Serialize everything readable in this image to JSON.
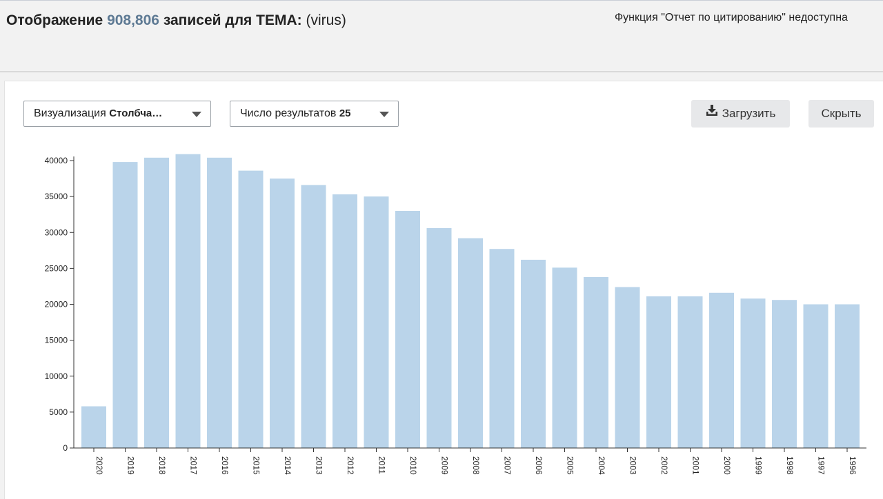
{
  "header": {
    "title_prefix": "Отображение",
    "record_count": "908,806",
    "title_mid": "записей для",
    "field": "ТЕМА:",
    "query": "(virus)",
    "notice": "Функция \"Отчет по цитированию\" недоступна"
  },
  "controls": {
    "visualization_label": "Визуализация",
    "visualization_value": "Столбча…",
    "results_label": "Число результатов",
    "results_value": "25",
    "download_label": "Загрузить",
    "hide_label": "Скрыть"
  },
  "icons": {
    "download": "download-icon",
    "dropdown": "chevron-down-icon"
  },
  "colors": {
    "bar": "#bad4ea",
    "count": "#5e7a94"
  },
  "chart_data": {
    "type": "bar",
    "categories": [
      "2020",
      "2019",
      "2018",
      "2017",
      "2016",
      "2015",
      "2014",
      "2013",
      "2012",
      "2011",
      "2010",
      "2009",
      "2008",
      "2007",
      "2006",
      "2005",
      "2004",
      "2003",
      "2002",
      "2001",
      "2000",
      "1999",
      "1998",
      "1997",
      "1996"
    ],
    "values": [
      5800,
      39800,
      40400,
      40900,
      40400,
      38600,
      37500,
      36600,
      35300,
      35000,
      33000,
      30600,
      29200,
      27700,
      26200,
      25100,
      23800,
      22400,
      21100,
      21100,
      21600,
      20800,
      20600,
      20000,
      20000
    ],
    "yticks": [
      "0",
      "5000",
      "10000",
      "15000",
      "20000",
      "25000",
      "30000",
      "35000",
      "40000"
    ],
    "ylim": [
      0,
      40000
    ],
    "grid": false,
    "xlabel": "",
    "ylabel": ""
  }
}
